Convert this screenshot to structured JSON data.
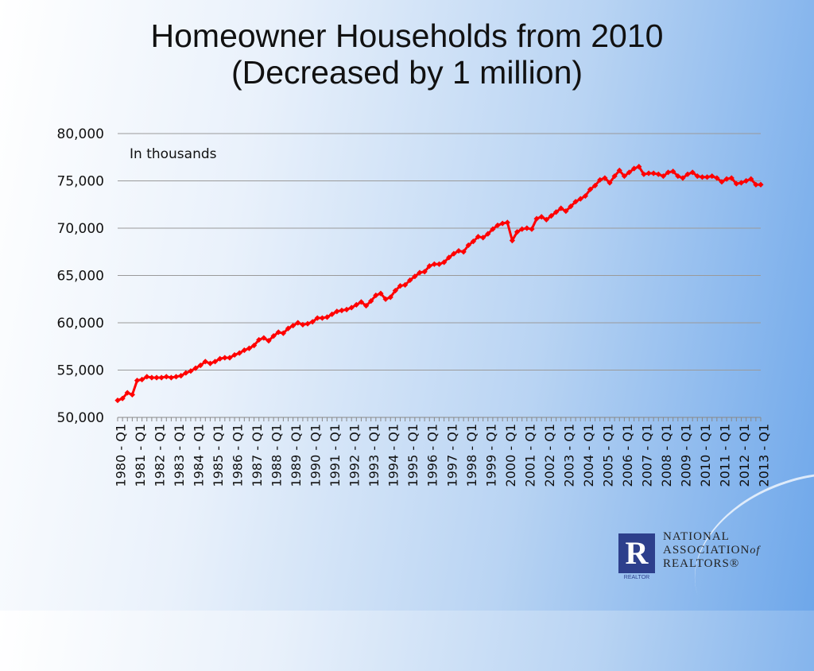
{
  "slide": {
    "title_line1": "Homeowner Households from 2010",
    "title_line2": "(Decreased by 1 million)"
  },
  "logo": {
    "letter": "R",
    "sub": "REALTOR",
    "line1": "NATIONAL",
    "line2": "ASSOCIATION",
    "line2_suffix": "of",
    "line3": "REALTORS®"
  },
  "chart_data": {
    "type": "line",
    "title": "Homeowner Households from 2010 (Decreased by 1 million)",
    "annotation": "In thousands",
    "ylim": [
      50000,
      80000
    ],
    "yticks": [
      "50,000",
      "55,000",
      "60,000",
      "65,000",
      "70,000",
      "75,000",
      "80,000"
    ],
    "grid": true,
    "line_color": "#ff0000",
    "x_tick_labels": [
      "1980 - Q1",
      "1981 - Q1",
      "1982 - Q1",
      "1983 - Q1",
      "1984 - Q1",
      "1985 - Q1",
      "1986 - Q1",
      "1987 - Q1",
      "1988 - Q1",
      "1989 - Q1",
      "1990 - Q1",
      "1991 - Q1",
      "1992 - Q1",
      "1993 - Q1",
      "1994 - Q1",
      "1995 - Q1",
      "1996 - Q1",
      "1997 - Q1",
      "1998 - Q1",
      "1999 - Q1",
      "2000 - Q1",
      "2001 - Q1",
      "2002 - Q1",
      "2003 - Q1",
      "2004 - Q1",
      "2005 - Q1",
      "2006 - Q1",
      "2007 - Q1",
      "2008 - Q1",
      "2009 - Q1",
      "2010 - Q1",
      "2011 - Q1",
      "2012 - Q1",
      "2013 - Q1"
    ],
    "series": [
      {
        "values": [
          51800,
          52000,
          52600,
          52400,
          53900,
          54000,
          54300,
          54200,
          54200,
          54200,
          54300,
          54200,
          54300,
          54400,
          54700,
          54900,
          55200,
          55500,
          55900,
          55700,
          55900,
          56200,
          56300,
          56300,
          56600,
          56800,
          57100,
          57300,
          57600,
          58200,
          58400,
          58100,
          58600,
          59000,
          58900,
          59400,
          59700,
          60000,
          59800,
          59900,
          60100,
          60500,
          60500,
          60600,
          60900,
          61200,
          61300,
          61400,
          61600,
          61900,
          62200,
          61800,
          62300,
          62900,
          63100,
          62500,
          62700,
          63400,
          63900,
          64000,
          64500,
          64900,
          65300,
          65400,
          66000,
          66200,
          66200,
          66400,
          66900,
          67300,
          67600,
          67500,
          68200,
          68600,
          69100,
          69000,
          69400,
          69900,
          70300,
          70500,
          70600,
          68700,
          69600,
          69900,
          70000,
          69900,
          71000,
          71200,
          70900,
          71300,
          71700,
          72100,
          71800,
          72300,
          72800,
          73100,
          73400,
          74100,
          74500,
          75100,
          75300,
          74800,
          75500,
          76100,
          75500,
          75900,
          76300,
          76500,
          75700,
          75800,
          75800,
          75700,
          75500,
          75900,
          76000,
          75500,
          75300,
          75700,
          75900,
          75500,
          75400,
          75400,
          75500,
          75300,
          74900,
          75200,
          75300,
          74700,
          74800,
          75000,
          75200,
          74600,
          74600
        ]
      }
    ]
  }
}
